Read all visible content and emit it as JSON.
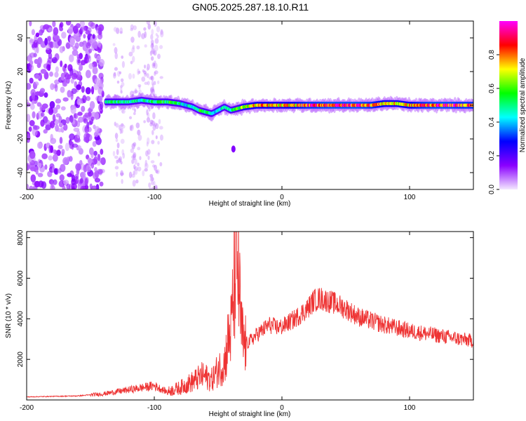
{
  "title": "GN05.2025.287.18.10.R11",
  "chart_data": [
    {
      "type": "heatmap",
      "xlabel": "Height of straight line (km)",
      "ylabel": "Frequency (Hz)",
      "xlim": [
        -200,
        150
      ],
      "ylim": [
        -50,
        50
      ],
      "x_ticks": [
        -200,
        -100,
        0,
        100
      ],
      "x_tick_labels": [
        "-200",
        "-100",
        "0",
        "100"
      ],
      "y_ticks": [
        -40,
        -20,
        0,
        20,
        40
      ],
      "y_tick_labels": [
        "-40",
        "-20",
        "0",
        "20",
        "40"
      ],
      "colorbar": {
        "label": "Normalized spectral amplitude",
        "range": [
          0,
          1
        ],
        "ticks": [
          0,
          0.2,
          0.4,
          0.6,
          0.8
        ],
        "tick_labels": [
          "0.0",
          "0.2",
          "0.4",
          "0.6",
          "0.8"
        ],
        "colormap": [
          "#f4e8ff",
          "#8a00ff",
          "#0000ff",
          "#00ffff",
          "#00ff00",
          "#ffff00",
          "#ff0000",
          "#ff00ff"
        ]
      },
      "noise_region_x": [
        -200,
        -140
      ],
      "faint_band_centers_x": [
        -128,
        -115,
        -105,
        -98
      ],
      "ridge": {
        "x": [
          -138,
          -130,
          -120,
          -110,
          -100,
          -90,
          -80,
          -75,
          -70,
          -65,
          -60,
          -55,
          -50,
          -45,
          -40,
          -35,
          -30,
          -20,
          -10,
          0,
          20,
          40,
          60,
          70,
          80,
          90,
          100,
          110,
          120,
          130,
          140,
          150
        ],
        "frequency_hz": [
          2,
          2,
          2,
          3,
          2,
          2,
          1,
          0,
          -1,
          -3,
          -4,
          -5,
          -3,
          -1,
          -3,
          -2,
          -1,
          0,
          0,
          0,
          0,
          0,
          0,
          0,
          1,
          1,
          0,
          0,
          0,
          0,
          0,
          0
        ],
        "amplitude": [
          0.5,
          0.55,
          0.5,
          0.5,
          0.55,
          0.6,
          0.5,
          0.45,
          0.5,
          0.55,
          0.6,
          0.5,
          0.45,
          0.5,
          0.55,
          0.6,
          0.7,
          0.8,
          0.8,
          0.75,
          0.9,
          0.95,
          0.95,
          0.9,
          0.8,
          0.75,
          0.8,
          0.9,
          0.95,
          0.95,
          0.9,
          0.9
        ]
      },
      "blob": {
        "x": -38,
        "frequency_hz": -26,
        "amplitude": 0.15
      }
    },
    {
      "type": "line",
      "xlabel": "Height of straight line (km)",
      "ylabel": "SNR (10 * v/v)",
      "xlim": [
        -200,
        150
      ],
      "ylim": [
        0,
        8300
      ],
      "x_ticks": [
        -200,
        -100,
        0,
        100
      ],
      "x_tick_labels": [
        "-200",
        "-100",
        "0",
        "100"
      ],
      "y_ticks": [
        2000,
        4000,
        6000,
        8000
      ],
      "y_tick_labels": [
        "2000",
        "4000",
        "6000",
        "8000"
      ],
      "line_color": "#ee3333",
      "envelope": {
        "x": [
          -200,
          -160,
          -140,
          -120,
          -100,
          -90,
          -80,
          -70,
          -62,
          -55,
          -50,
          -45,
          -42,
          -40,
          -38,
          -36,
          -34,
          -32,
          -30,
          -25,
          -20,
          -10,
          -5,
          0,
          10,
          20,
          25,
          30,
          40,
          50,
          60,
          80,
          100,
          120,
          140,
          150
        ],
        "snr": [
          150,
          200,
          300,
          500,
          700,
          400,
          600,
          900,
          1200,
          1000,
          1500,
          1800,
          3000,
          3400,
          5000,
          7500,
          6000,
          3500,
          2700,
          2900,
          3200,
          3700,
          3600,
          3600,
          4000,
          4500,
          4900,
          5000,
          4800,
          4500,
          4100,
          3700,
          3400,
          3200,
          3000,
          2900
        ]
      }
    }
  ]
}
